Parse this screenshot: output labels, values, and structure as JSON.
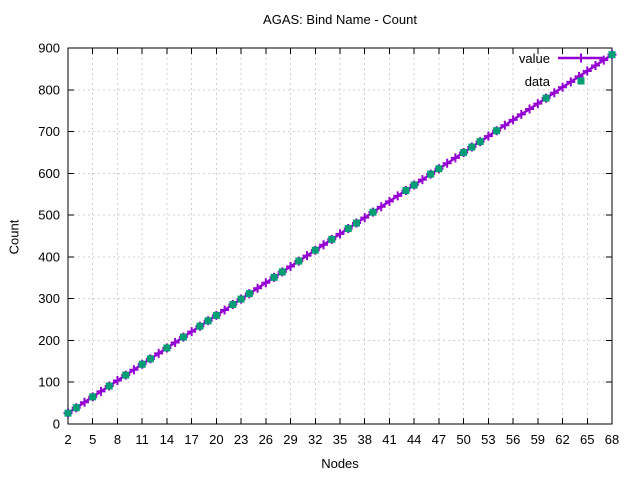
{
  "title": "AGAS: Bind Name - Count",
  "chart_data": {
    "type": "line",
    "title": "AGAS: Bind Name - Count",
    "xlabel": "Nodes",
    "ylabel": "Count",
    "xlim": [
      2,
      68
    ],
    "ylim": [
      0,
      900
    ],
    "x_ticks": [
      2,
      5,
      8,
      11,
      14,
      17,
      20,
      23,
      26,
      29,
      32,
      35,
      38,
      41,
      44,
      47,
      50,
      53,
      56,
      59,
      62,
      65,
      68
    ],
    "y_ticks": [
      0,
      100,
      200,
      300,
      400,
      500,
      600,
      700,
      800,
      900
    ],
    "grid": true,
    "legend_position": "top-right-inside",
    "colors": {
      "value_series": "#9400D3",
      "data_series": "#009E73",
      "grid": "#d0d0d0",
      "border": "#000000",
      "background": "#ffffff"
    },
    "series": [
      {
        "name": "value",
        "style": "line-with-plus-markers",
        "color": "#9400D3",
        "x": [
          2,
          3,
          4,
          5,
          6,
          7,
          8,
          9,
          10,
          11,
          12,
          13,
          14,
          15,
          16,
          17,
          18,
          19,
          20,
          21,
          22,
          23,
          24,
          25,
          26,
          27,
          28,
          29,
          30,
          31,
          32,
          33,
          34,
          35,
          36,
          37,
          38,
          39,
          40,
          41,
          42,
          43,
          44,
          45,
          46,
          47,
          48,
          49,
          50,
          51,
          52,
          53,
          54,
          55,
          56,
          57,
          58,
          59,
          60,
          61,
          62,
          63,
          64,
          65,
          66,
          67,
          68
        ],
        "y": [
          26,
          39,
          52,
          65,
          78,
          91,
          104,
          117,
          130,
          143,
          156,
          169,
          182,
          195,
          208,
          221,
          234,
          247,
          260,
          273,
          286,
          299,
          312,
          325,
          338,
          351,
          364,
          377,
          390,
          403,
          416,
          429,
          442,
          455,
          468,
          481,
          494,
          507,
          520,
          533,
          546,
          559,
          572,
          585,
          598,
          611,
          624,
          637,
          650,
          663,
          676,
          689,
          702,
          715,
          728,
          741,
          754,
          767,
          780,
          793,
          806,
          819,
          832,
          845,
          858,
          871,
          884
        ]
      },
      {
        "name": "data",
        "style": "filled-square-markers",
        "color": "#009E73",
        "x": [
          2,
          3,
          5,
          7,
          9,
          11,
          12,
          14,
          16,
          18,
          19,
          20,
          22,
          23,
          24,
          27,
          28,
          30,
          32,
          34,
          36,
          37,
          39,
          43,
          44,
          46,
          47,
          50,
          51,
          52,
          54,
          60,
          68
        ],
        "y": [
          26,
          39,
          65,
          91,
          117,
          143,
          156,
          182,
          208,
          234,
          247,
          260,
          286,
          299,
          312,
          351,
          364,
          390,
          416,
          442,
          468,
          481,
          507,
          559,
          572,
          598,
          611,
          650,
          663,
          676,
          702,
          780,
          884
        ]
      }
    ]
  }
}
